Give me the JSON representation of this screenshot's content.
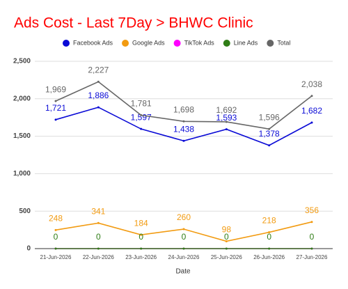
{
  "chart_data": {
    "type": "line",
    "title": "Ads Cost - Last 7Day > BHWC Clinic",
    "x_label": "Date",
    "categories": [
      "21-Jun-2026",
      "22-Jun-2026",
      "23-Jun-2026",
      "24-Jun-2026",
      "25-Jun-2026",
      "26-Jun-2026",
      "27-Jun-2026"
    ],
    "series": [
      {
        "name": "Facebook Ads",
        "color": "#0a0ad6",
        "values": [
          1721,
          1886,
          1597,
          1438,
          1593,
          1378,
          1682
        ],
        "show_labels": true,
        "value_labels": [
          "1,721",
          "1,886",
          "1,597",
          "1,438",
          "1,593",
          "1,378",
          "1,682"
        ]
      },
      {
        "name": "Google Ads",
        "color": "#f29b11",
        "values": [
          248,
          341,
          184,
          260,
          98,
          218,
          356
        ],
        "show_labels": true,
        "value_labels": [
          "248",
          "341",
          "184",
          "260",
          "98",
          "218",
          "356"
        ]
      },
      {
        "name": "TikTok Ads",
        "color": "#ff00ff",
        "values": [
          0,
          0,
          0,
          0,
          0,
          0,
          0
        ],
        "show_labels": false
      },
      {
        "name": "Line Ads",
        "color": "#2f7d16",
        "values": [
          0,
          0,
          0,
          0,
          0,
          0,
          0
        ],
        "show_labels": true,
        "value_labels": [
          "0",
          "0",
          "0",
          "0",
          "0",
          "0",
          "0"
        ]
      },
      {
        "name": "Total",
        "color": "#666666",
        "values": [
          1969,
          2227,
          1781,
          1698,
          1692,
          1596,
          2038
        ],
        "show_labels": true,
        "value_labels": [
          "1,969",
          "2,227",
          "1,781",
          "1,698",
          "1,692",
          "1,596",
          "2,038"
        ]
      }
    ],
    "ylim": [
      0,
      2500
    ],
    "yticks": [
      0,
      500,
      {
        "value": 1000,
        "label": "1,000"
      },
      {
        "value": 1500,
        "label": "1,500"
      },
      {
        "value": 2000,
        "label": "2,000"
      },
      {
        "value": 2500,
        "label": "2,500"
      }
    ],
    "grid": true,
    "legend": "top"
  }
}
